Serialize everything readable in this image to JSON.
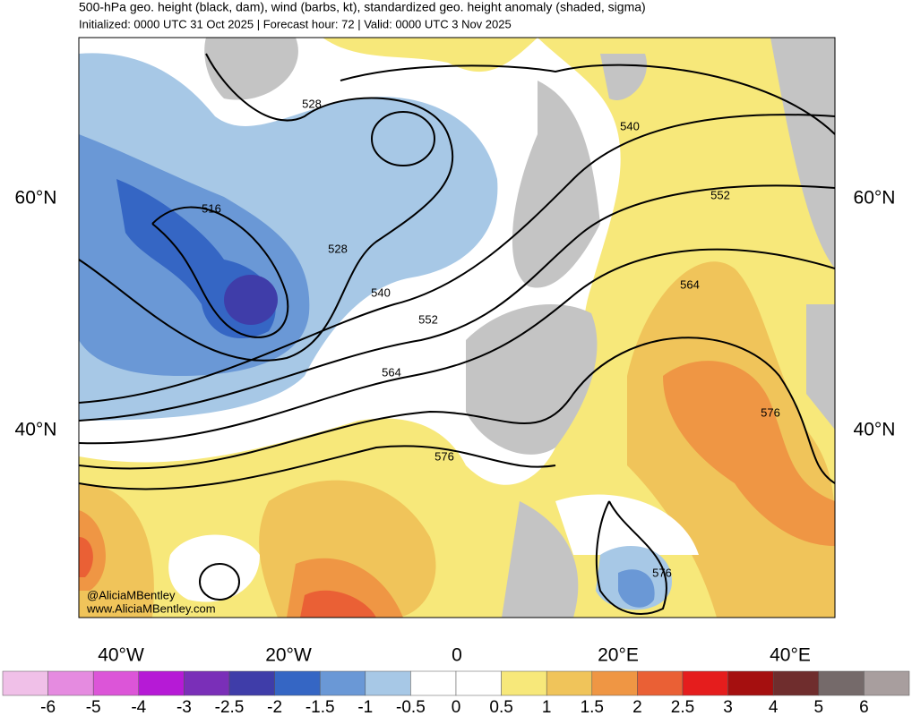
{
  "header": {
    "title": "500-hPa geo. height (black, dam), wind (barbs, kt), standardized geo. height anomaly (shaded, sigma)",
    "subtitle": "Initialized: 0000 UTC 31 Oct 2025 | Forecast hour: 72 | Valid: 0000 UTC 3 Nov 2025"
  },
  "map": {
    "lat_labels_left": [
      "60°N",
      "40°N"
    ],
    "lat_labels_right": [
      "60°N",
      "40°N"
    ],
    "lon_labels": [
      "40°W",
      "20°W",
      "0",
      "20°E",
      "40°E"
    ],
    "contour_labels": [
      "528",
      "516",
      "528",
      "540",
      "552",
      "564",
      "576",
      "540",
      "552",
      "564",
      "576",
      "576"
    ],
    "credits": [
      "@AliciaMBentley",
      "www.AliciaMBentley.com"
    ]
  },
  "colorbar": {
    "ticks": [
      -6,
      -5,
      -4,
      -3,
      -2.5,
      -2,
      -1.5,
      -1,
      -0.5,
      0,
      0.5,
      1,
      1.5,
      2,
      2.5,
      3,
      4,
      5,
      6
    ],
    "colors": [
      "#f0c0e8",
      "#e58be0",
      "#dc55d8",
      "#b61ad6",
      "#7a2fb8",
      "#3f3da9",
      "#3566c4",
      "#6a98d6",
      "#a7c8e6",
      "#ffffff",
      "#ffffff",
      "#f7e87a",
      "#f0c45a",
      "#ef9644",
      "#ea6035",
      "#e51d1d",
      "#a50f0f",
      "#6f2d2d",
      "#756a6a",
      "#a89e9e"
    ]
  }
}
